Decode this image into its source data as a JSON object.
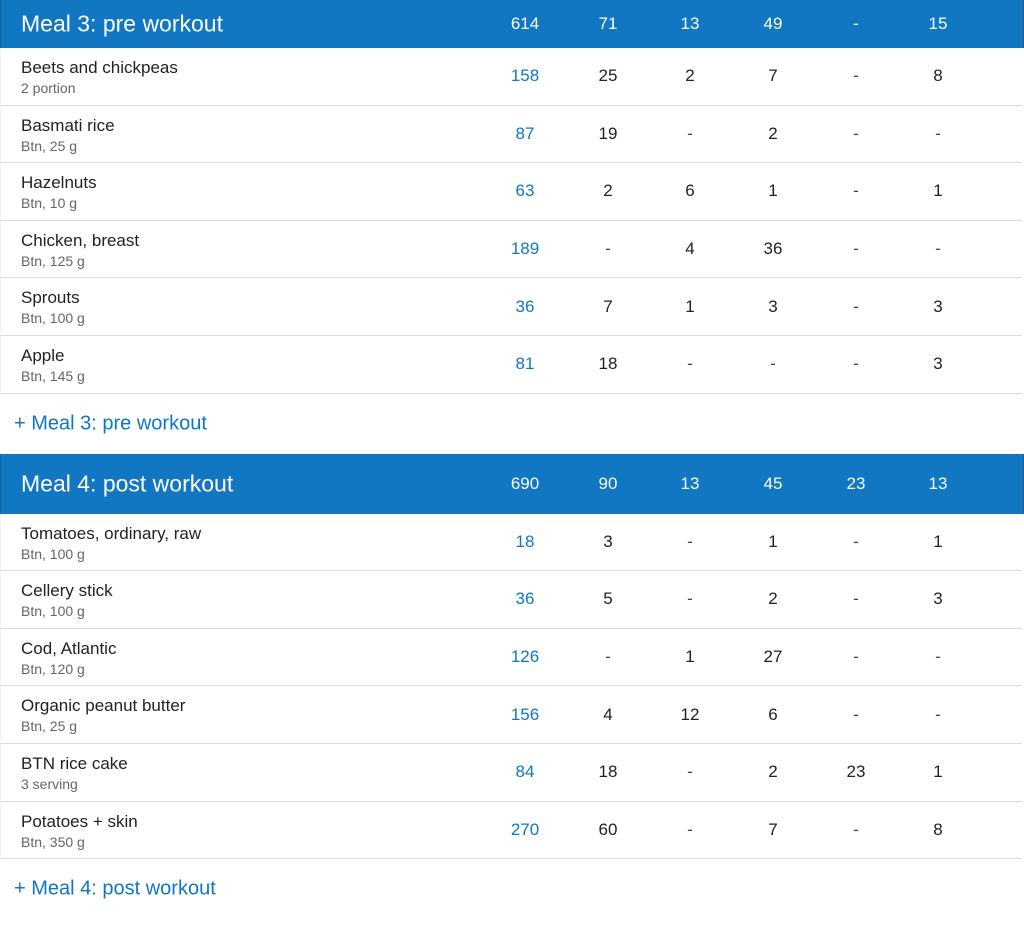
{
  "colors": {
    "accent": "#1177c2"
  },
  "meals": [
    {
      "title": "Meal 3: pre workout",
      "totals": [
        "614",
        "71",
        "13",
        "49",
        "-",
        "15"
      ],
      "add_label": "+ Meal 3: pre workout",
      "items": [
        {
          "name": "Beets and chickpeas",
          "portion": "2 portion",
          "values": [
            "158",
            "25",
            "2",
            "7",
            "-",
            "8"
          ]
        },
        {
          "name": "Basmati rice",
          "portion": "Btn, 25 g",
          "values": [
            "87",
            "19",
            "-",
            "2",
            "-",
            "-"
          ]
        },
        {
          "name": "Hazelnuts",
          "portion": "Btn, 10 g",
          "values": [
            "63",
            "2",
            "6",
            "1",
            "-",
            "1"
          ]
        },
        {
          "name": "Chicken, breast",
          "portion": "Btn, 125 g",
          "values": [
            "189",
            "-",
            "4",
            "36",
            "-",
            "-"
          ]
        },
        {
          "name": "Sprouts",
          "portion": "Btn, 100 g",
          "values": [
            "36",
            "7",
            "1",
            "3",
            "-",
            "3"
          ]
        },
        {
          "name": "Apple",
          "portion": "Btn, 145 g",
          "values": [
            "81",
            "18",
            "-",
            "-",
            "-",
            "3"
          ]
        }
      ]
    },
    {
      "title": "Meal 4: post workout",
      "totals": [
        "690",
        "90",
        "13",
        "45",
        "23",
        "13"
      ],
      "add_label": "+ Meal 4: post workout",
      "items": [
        {
          "name": "Tomatoes, ordinary, raw",
          "portion": "Btn, 100 g",
          "values": [
            "18",
            "3",
            "-",
            "1",
            "-",
            "1"
          ]
        },
        {
          "name": "Cellery stick",
          "portion": "Btn, 100 g",
          "values": [
            "36",
            "5",
            "-",
            "2",
            "-",
            "3"
          ]
        },
        {
          "name": "Cod, Atlantic",
          "portion": "Btn, 120 g",
          "values": [
            "126",
            "-",
            "1",
            "27",
            "-",
            "-"
          ]
        },
        {
          "name": "Organic peanut butter",
          "portion": "Btn, 25 g",
          "values": [
            "156",
            "4",
            "12",
            "6",
            "-",
            "-"
          ]
        },
        {
          "name": "BTN rice cake",
          "portion": "3 serving",
          "values": [
            "84",
            "18",
            "-",
            "2",
            "23",
            "1"
          ]
        },
        {
          "name": "Potatoes + skin",
          "portion": "Btn, 350 g",
          "values": [
            "270",
            "60",
            "-",
            "7",
            "-",
            "8"
          ]
        }
      ]
    }
  ]
}
